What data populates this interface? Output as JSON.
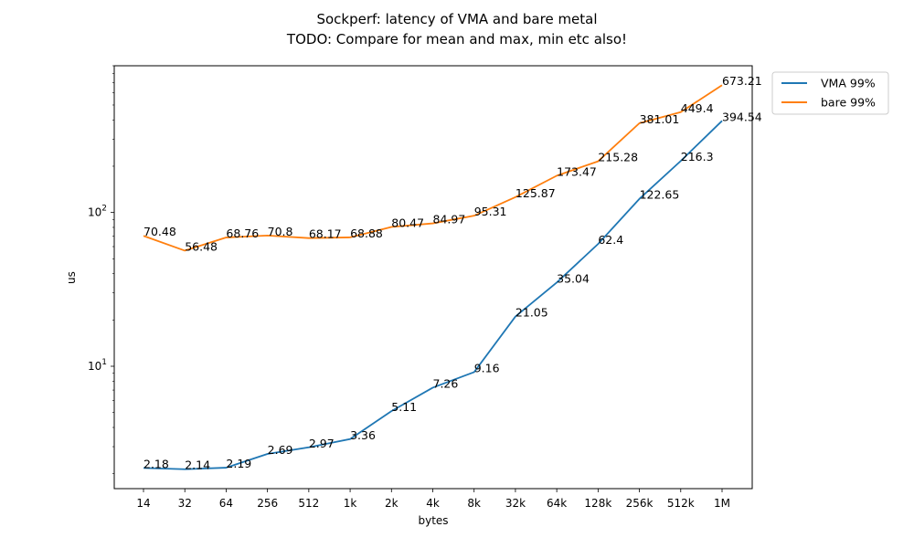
{
  "chart_data": {
    "type": "line",
    "title": "Sockperf: latency of VMA and bare metal",
    "subtitle": "TODO: Compare for mean and max, min etc also!",
    "xlabel": "bytes",
    "ylabel": "us",
    "yscale": "log",
    "ylim": [
      1.6,
      900
    ],
    "y_ticks": [
      {
        "value": 10,
        "label": "10",
        "exp": "1"
      },
      {
        "value": 100,
        "label": "10",
        "exp": "2"
      }
    ],
    "categories": [
      "14",
      "32",
      "64",
      "256",
      "512",
      "1k",
      "2k",
      "4k",
      "8k",
      "32k",
      "64k",
      "128k",
      "256k",
      "512k",
      "1M"
    ],
    "series": [
      {
        "name": "VMA 99%",
        "color": "#1f77b4",
        "values": [
          2.18,
          2.14,
          2.19,
          2.69,
          2.97,
          3.36,
          5.11,
          7.26,
          9.16,
          21.05,
          35.04,
          62.4,
          122.65,
          216.3,
          394.54
        ]
      },
      {
        "name": "bare 99%",
        "color": "#ff7f0e",
        "values": [
          70.48,
          56.48,
          68.76,
          70.8,
          68.17,
          68.88,
          80.47,
          84.97,
          95.31,
          125.87,
          173.47,
          215.28,
          381.01,
          449.4,
          673.21
        ]
      }
    ],
    "data_labels": true,
    "grid": false,
    "legend": {
      "placement": "outside-top-right"
    }
  }
}
